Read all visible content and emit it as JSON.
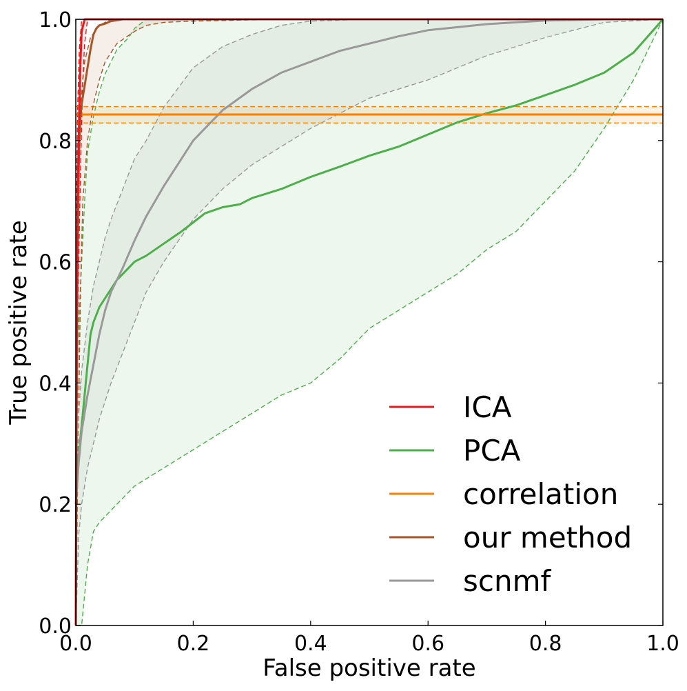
{
  "chart_data": {
    "type": "line",
    "title": "",
    "xlabel": "False positive rate",
    "ylabel": "True positive rate",
    "xlim": [
      0.0,
      1.0
    ],
    "ylim": [
      0.0,
      1.0
    ],
    "xticks": [
      "0.0",
      "0.2",
      "0.4",
      "0.6",
      "0.8",
      "1.0"
    ],
    "yticks": [
      "0.0",
      "0.2",
      "0.4",
      "0.6",
      "0.8",
      "1.0"
    ],
    "grid": false,
    "legend_position": "bottom-right",
    "series": [
      {
        "name": "ICA",
        "color": "#e41a1c",
        "x": [
          0,
          0.001,
          0.002,
          0.004,
          0.006,
          0.008,
          0.01,
          0.015,
          1.0
        ],
        "y": [
          0,
          0.4,
          0.6,
          0.75,
          0.85,
          0.93,
          0.98,
          1.0,
          1.0
        ],
        "upper": {
          "x": [
            0,
            0.001,
            0.003,
            0.006,
            0.01,
            1.0
          ],
          "y": [
            0,
            0.7,
            0.85,
            0.95,
            1.0,
            1.0
          ]
        },
        "lower": {
          "x": [
            0,
            0.002,
            0.004,
            0.008,
            0.012,
            0.015,
            0.02,
            1.0
          ],
          "y": [
            0,
            0.3,
            0.55,
            0.75,
            0.9,
            0.96,
            1.0,
            1.0
          ]
        }
      },
      {
        "name": "PCA",
        "color": "#4daf4a",
        "x": [
          0,
          0.005,
          0.01,
          0.015,
          0.02,
          0.025,
          0.03,
          0.04,
          0.05,
          0.06,
          0.07,
          0.08,
          0.09,
          0.1,
          0.12,
          0.15,
          0.18,
          0.2,
          0.22,
          0.25,
          0.28,
          0.3,
          0.35,
          0.4,
          0.45,
          0.5,
          0.55,
          0.6,
          0.65,
          0.7,
          0.75,
          0.8,
          0.85,
          0.9,
          0.95,
          1.0
        ],
        "y": [
          0.2,
          0.28,
          0.33,
          0.38,
          0.43,
          0.48,
          0.5,
          0.525,
          0.54,
          0.555,
          0.57,
          0.58,
          0.59,
          0.6,
          0.61,
          0.63,
          0.65,
          0.665,
          0.68,
          0.69,
          0.695,
          0.705,
          0.72,
          0.74,
          0.757,
          0.775,
          0.79,
          0.81,
          0.83,
          0.845,
          0.858,
          0.875,
          0.892,
          0.912,
          0.945,
          1.0
        ],
        "upper": {
          "x": [
            0,
            0.005,
            0.01,
            0.015,
            0.02,
            0.03,
            0.04,
            0.05,
            0.07,
            0.08,
            0.09,
            0.1,
            0.12,
            1.0
          ],
          "y": [
            0.3,
            0.5,
            0.6,
            0.7,
            0.78,
            0.84,
            0.88,
            0.91,
            0.95,
            0.96,
            0.97,
            0.985,
            1.0,
            1.0
          ]
        },
        "lower": {
          "x": [
            0,
            0.01,
            0.015,
            0.02,
            0.03,
            0.04,
            0.06,
            0.08,
            0.1,
            0.15,
            0.2,
            0.25,
            0.3,
            0.35,
            0.4,
            0.45,
            0.5,
            0.55,
            0.6,
            0.65,
            0.7,
            0.75,
            0.8,
            0.85,
            0.9,
            0.95,
            1.0
          ],
          "y": [
            0,
            0.0,
            0.05,
            0.1,
            0.155,
            0.17,
            0.19,
            0.21,
            0.23,
            0.26,
            0.29,
            0.32,
            0.35,
            0.38,
            0.4,
            0.44,
            0.49,
            0.52,
            0.55,
            0.58,
            0.62,
            0.65,
            0.7,
            0.75,
            0.82,
            0.9,
            1.0
          ]
        }
      },
      {
        "name": "correlation",
        "color": "#ff7f00",
        "x": [
          0,
          1.0
        ],
        "y": [
          0.843,
          0.843
        ],
        "upper": {
          "x": [
            0,
            1.0
          ],
          "y": [
            0.856,
            0.856
          ]
        },
        "lower": {
          "x": [
            0,
            1.0
          ],
          "y": [
            0.829,
            0.829
          ]
        }
      },
      {
        "name": "our method",
        "color": "#a65628",
        "x": [
          0,
          0.002,
          0.004,
          0.006,
          0.008,
          0.01,
          0.015,
          0.02,
          0.025,
          0.03,
          0.035,
          0.04,
          0.05,
          0.06,
          0.08,
          0.1,
          0.12,
          1.0
        ],
        "y": [
          0.0,
          0.5,
          0.7,
          0.8,
          0.84,
          0.86,
          0.89,
          0.92,
          0.95,
          0.975,
          0.985,
          0.99,
          0.993,
          0.997,
          1.0,
          1.0,
          1.0,
          1.0
        ],
        "upper": {
          "x": [
            0,
            0.003,
            0.008,
            0.015,
            0.025,
            0.04,
            0.06,
            0.08,
            1.0
          ],
          "y": [
            0.2,
            0.7,
            0.86,
            0.93,
            0.97,
            0.99,
            1.0,
            1.0,
            1.0
          ]
        },
        "lower": {
          "x": [
            0,
            0.004,
            0.008,
            0.012,
            0.02,
            0.03,
            0.04,
            0.05,
            0.07,
            0.1,
            0.12,
            0.15,
            0.2,
            0.3,
            0.5,
            1.0
          ],
          "y": [
            0.0,
            0.3,
            0.55,
            0.7,
            0.8,
            0.86,
            0.9,
            0.93,
            0.96,
            0.98,
            0.99,
            0.995,
            0.997,
            0.999,
            1.0,
            1.0
          ]
        }
      },
      {
        "name": "scnmf",
        "color": "#999999",
        "x": [
          0,
          0.005,
          0.01,
          0.02,
          0.03,
          0.04,
          0.05,
          0.06,
          0.08,
          0.1,
          0.12,
          0.15,
          0.18,
          0.2,
          0.22,
          0.25,
          0.3,
          0.35,
          0.4,
          0.45,
          0.5,
          0.55,
          0.6,
          0.7,
          0.8,
          0.9,
          1.0
        ],
        "y": [
          0.2,
          0.27,
          0.32,
          0.38,
          0.43,
          0.48,
          0.52,
          0.55,
          0.59,
          0.635,
          0.675,
          0.725,
          0.77,
          0.8,
          0.82,
          0.85,
          0.885,
          0.912,
          0.93,
          0.948,
          0.96,
          0.972,
          0.982,
          0.992,
          0.998,
          1.0,
          1.0
        ],
        "upper": {
          "x": [
            0,
            0.005,
            0.01,
            0.02,
            0.03,
            0.04,
            0.05,
            0.06,
            0.08,
            0.1,
            0.12,
            0.15,
            0.2,
            0.25,
            0.3,
            0.35,
            0.4,
            0.5,
            1.0
          ],
          "y": [
            0.2,
            0.35,
            0.42,
            0.5,
            0.56,
            0.6,
            0.64,
            0.67,
            0.72,
            0.77,
            0.8,
            0.855,
            0.92,
            0.955,
            0.975,
            0.99,
            0.997,
            1.0,
            1.0
          ]
        },
        "lower": {
          "x": [
            0,
            0.005,
            0.01,
            0.02,
            0.03,
            0.04,
            0.05,
            0.06,
            0.08,
            0.1,
            0.12,
            0.15,
            0.2,
            0.25,
            0.3,
            0.35,
            0.4,
            0.5,
            0.6,
            0.7,
            0.8,
            0.9,
            1.0
          ],
          "y": [
            0,
            0.15,
            0.2,
            0.26,
            0.3,
            0.34,
            0.37,
            0.4,
            0.45,
            0.5,
            0.55,
            0.6,
            0.67,
            0.72,
            0.76,
            0.79,
            0.82,
            0.87,
            0.9,
            0.94,
            0.97,
            0.995,
            1.0
          ]
        }
      }
    ]
  }
}
